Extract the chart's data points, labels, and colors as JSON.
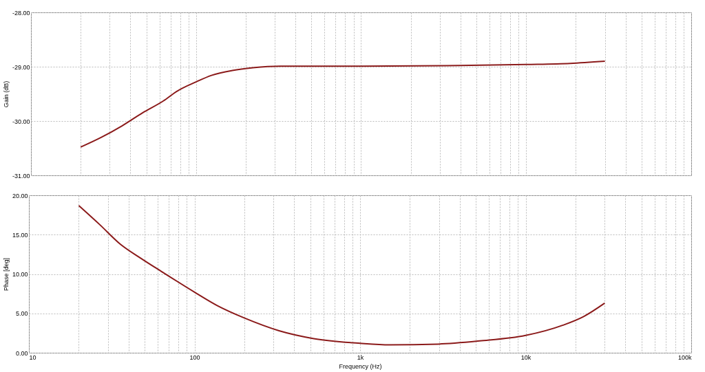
{
  "chart_data": [
    {
      "type": "line",
      "ylabel": "Gain (dB)",
      "log": "x",
      "grid": true,
      "tick_labels": "y",
      "xlim": [
        10,
        100000
      ],
      "ylim": [
        -31,
        -28
      ],
      "xticks": [
        10,
        20,
        30,
        40,
        50,
        60,
        70,
        80,
        90,
        100,
        200,
        300,
        400,
        500,
        600,
        700,
        800,
        900,
        1000,
        2000,
        3000,
        4000,
        5000,
        6000,
        7000,
        8000,
        9000,
        10000,
        20000,
        30000,
        40000,
        50000,
        60000,
        70000,
        80000,
        90000,
        100000
      ],
      "yticks": [
        {
          "value": -31,
          "label": "-31.00"
        },
        {
          "value": -30,
          "label": "-30.00"
        },
        {
          "value": -29,
          "label": "-29.00"
        },
        {
          "value": -28,
          "label": "-28.00"
        }
      ],
      "series": [
        {
          "color": "#8b1a1a",
          "x": [
            20,
            26.7,
            35.6,
            47.4,
            63.4,
            76.8,
            100,
            124,
            166,
            221,
            324,
            1000,
            3270,
            10000,
            18500,
            30000
          ],
          "values": [
            -30.48,
            -30.3,
            -30.09,
            -29.85,
            -29.63,
            -29.45,
            -29.28,
            -29.16,
            -29.07,
            -29.02,
            -28.99,
            -28.99,
            -28.98,
            -28.96,
            -28.94,
            -28.9
          ]
        }
      ]
    },
    {
      "type": "line",
      "ylabel": "Phase [deg]",
      "xlabel": "Frequency (Hz)",
      "log": "x",
      "grid": true,
      "xlim": [
        10,
        100000
      ],
      "ylim": [
        0,
        20
      ],
      "xticks": [
        {
          "value": 10,
          "label": "10"
        },
        {
          "value": 20,
          "label": null
        },
        {
          "value": 30,
          "label": null
        },
        {
          "value": 40,
          "label": null
        },
        {
          "value": 50,
          "label": null
        },
        {
          "value": 60,
          "label": null
        },
        {
          "value": 70,
          "label": null
        },
        {
          "value": 80,
          "label": null
        },
        {
          "value": 90,
          "label": null
        },
        {
          "value": 100,
          "label": "100"
        },
        {
          "value": 200,
          "label": null
        },
        {
          "value": 300,
          "label": null
        },
        {
          "value": 400,
          "label": null
        },
        {
          "value": 500,
          "label": null
        },
        {
          "value": 600,
          "label": null
        },
        {
          "value": 700,
          "label": null
        },
        {
          "value": 800,
          "label": null
        },
        {
          "value": 900,
          "label": null
        },
        {
          "value": 1000,
          "label": "1k"
        },
        {
          "value": 2000,
          "label": null
        },
        {
          "value": 3000,
          "label": null
        },
        {
          "value": 4000,
          "label": null
        },
        {
          "value": 5000,
          "label": null
        },
        {
          "value": 6000,
          "label": null
        },
        {
          "value": 7000,
          "label": null
        },
        {
          "value": 8000,
          "label": null
        },
        {
          "value": 9000,
          "label": null
        },
        {
          "value": 10000,
          "label": "10k"
        },
        {
          "value": 20000,
          "label": null
        },
        {
          "value": 30000,
          "label": null
        },
        {
          "value": 40000,
          "label": null
        },
        {
          "value": 50000,
          "label": null
        },
        {
          "value": 60000,
          "label": null
        },
        {
          "value": 70000,
          "label": null
        },
        {
          "value": 80000,
          "label": null
        },
        {
          "value": 90000,
          "label": null
        },
        {
          "value": 100000,
          "label": "100k"
        }
      ],
      "yticks": [
        {
          "value": 0,
          "label": "0.00"
        },
        {
          "value": 5,
          "label": "5.00"
        },
        {
          "value": 10,
          "label": "10.00"
        },
        {
          "value": 15,
          "label": "15.00"
        },
        {
          "value": 20,
          "label": "20.00"
        }
      ],
      "series": [
        {
          "color": "#8b1a1a",
          "x": [
            20,
            26.7,
            35.6,
            47.4,
            63.4,
            100,
            137,
            201,
            324,
            525,
            1000,
            1510,
            2970,
            5270,
            10000,
            16800,
            22400,
            30000
          ],
          "values": [
            18.7,
            16.3,
            13.8,
            12,
            10.3,
            7.7,
            6,
            4.4,
            2.8,
            1.8,
            1.2,
            1,
            1.1,
            1.5,
            2.2,
            3.5,
            4.6,
            6.3
          ]
        }
      ]
    }
  ]
}
